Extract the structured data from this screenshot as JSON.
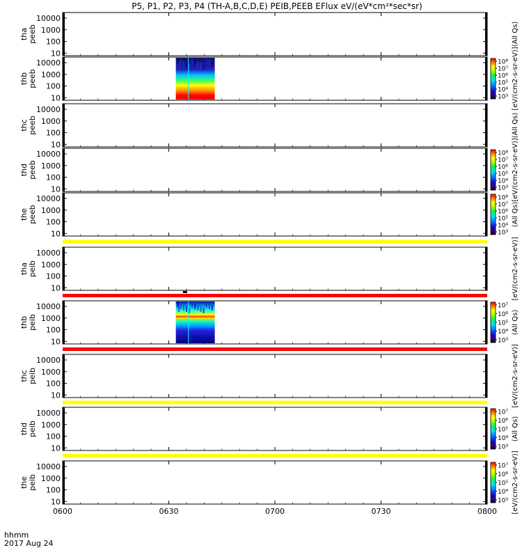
{
  "title": "P5, P1, P2, P3, P4 (TH-A,B,C,D,E) PEIB,PEEB EFlux eV/(eV*cm²*sec*sr)",
  "footer": {
    "xunit": "hhmm",
    "date": "2017 Aug 24"
  },
  "chart_data": {
    "type": "heatmap",
    "x_range": [
      "0600",
      "0800"
    ],
    "x_ticks": [
      "0600",
      "0630",
      "0700",
      "0730",
      "0800"
    ],
    "y_scale": "log",
    "y_range": [
      6,
      30000
    ],
    "y_ticks": [
      "10",
      "100",
      "1000",
      "10000"
    ],
    "panels": [
      {
        "id": "tha_peeb",
        "ylabel": [
          "tha",
          "peeb"
        ],
        "cbar": "",
        "cbar_labels": []
      },
      {
        "id": "thb_peeb",
        "ylabel": [
          "thb",
          "peeb"
        ],
        "cbar": "rainbow",
        "cbar_labels": [
          "10⁸",
          "10⁷",
          "10⁶",
          "10⁵",
          "10⁴",
          "10³"
        ],
        "data_block": {
          "start": "0632",
          "end": "0643"
        }
      },
      {
        "id": "thc_peeb",
        "ylabel": [
          "thc",
          "peeb"
        ],
        "cbar": "",
        "cbar_labels": []
      },
      {
        "id": "thd_peeb",
        "ylabel": [
          "thd",
          "peeb"
        ],
        "cbar": "rainbow",
        "cbar_labels": [
          "10⁸",
          "10⁷",
          "10⁶",
          "10⁵",
          "10⁴",
          "10³"
        ]
      },
      {
        "id": "the_peeb",
        "ylabel": [
          "the",
          "peeb"
        ],
        "cbar": "rainbow",
        "cbar_labels": [
          "10⁸",
          "10⁷",
          "10⁶",
          "10⁵",
          "10⁴",
          "10³"
        ]
      },
      {
        "id": "tha_peib",
        "ylabel": [
          "tha",
          "peib"
        ],
        "cbar": "",
        "cbar_labels": []
      },
      {
        "id": "thb_peib",
        "ylabel": [
          "thb",
          "peib"
        ],
        "cbar": "rainbow",
        "cbar_labels": [
          "10⁷",
          "10⁶",
          "10⁵",
          "10⁴",
          "10³"
        ],
        "data_block": {
          "start": "0632",
          "end": "0643"
        }
      },
      {
        "id": "thc_peib",
        "ylabel": [
          "thc",
          "peib"
        ],
        "cbar": "",
        "cbar_labels": []
      },
      {
        "id": "thd_peib",
        "ylabel": [
          "thd",
          "peib"
        ],
        "cbar": "rainbow",
        "cbar_labels": [
          "10⁷",
          "10⁶",
          "10⁵",
          "10⁴",
          "10³"
        ]
      },
      {
        "id": "the_peib",
        "ylabel": [
          "the",
          "peib"
        ],
        "cbar": "rainbow",
        "cbar_labels": [
          "10⁷",
          "10⁶",
          "10⁵",
          "10⁴",
          "10³"
        ]
      }
    ],
    "colorbar_titles": [
      "(All Qs)",
      "[eV/(cm2-s-sr-eV)]",
      "(All Qs)",
      "[eV/(cm2-s-sr-eV)]",
      "(All Qs)",
      "[eV/(cm2-s-sr-eV)]",
      "(All Qs)",
      "[eV/(cm2-s-sr-eV)]",
      "(All Qs)",
      "[eV/(cm2-s-sr-eV)]"
    ],
    "bars": [
      {
        "after_panel": 4,
        "color": "#ffff00"
      },
      {
        "after_panel": 5,
        "color": "#ff0000"
      },
      {
        "after_panel": 6,
        "color": "#ff0000"
      },
      {
        "after_panel": 7,
        "color": "#ffff00"
      },
      {
        "after_panel": 8,
        "color": "#ffff00"
      }
    ]
  }
}
